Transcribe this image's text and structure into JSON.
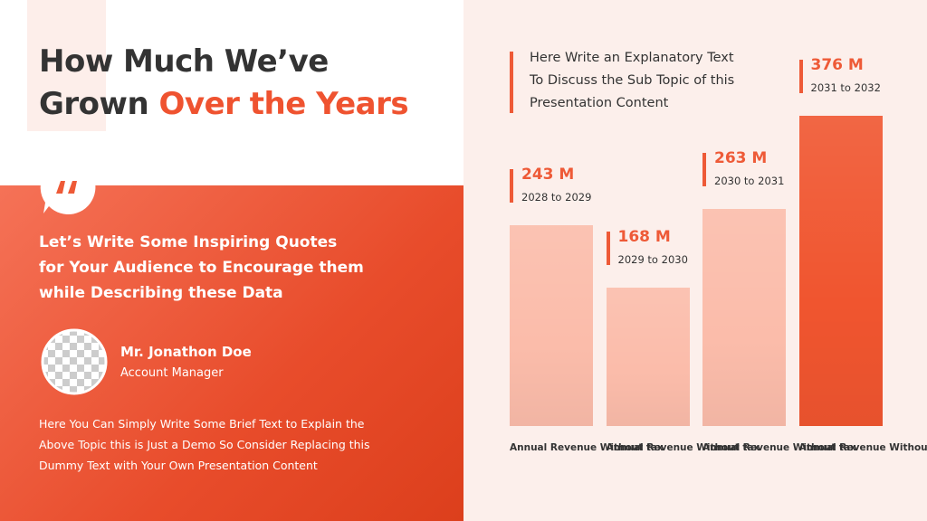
{
  "title": {
    "line1": "How Much We’ve",
    "line2": "Grown",
    "highlight": "Over the Years"
  },
  "quote": [
    "Let’s Write Some Inspiring Quotes",
    "for Your Audience to Encourage them",
    "while Describing these Data"
  ],
  "author": {
    "name": "Mr. Jonathon Doe",
    "role": "Account Manager"
  },
  "description": [
    "Here You Can Simply Write Some Brief Text to Explain the",
    "Above Topic this is Just a Demo So Consider Replacing this",
    "Dummy Text with Your Own Presentation Content"
  ],
  "chart_data": {
    "type": "bar",
    "annotation": [
      "Here Write an Explanatory Text",
      "To Discuss the Sub Topic of this",
      "Presentation Content"
    ],
    "categories": [
      "Annual Revenue Without tax",
      "Annual Revenue Without tax",
      "Annual Revenue Without tax",
      "Annual Revenue Without tax"
    ],
    "periods": [
      "2028 to 2029",
      "2029 to 2030",
      "2030 to 2031",
      "2031 to 2032"
    ],
    "values": [
      243,
      168,
      263,
      376
    ],
    "value_labels": [
      "243 M",
      "168 M",
      "263 M",
      "376 M"
    ],
    "colors": [
      "#fbbcaa",
      "#fbbcaa",
      "#fbbcaa",
      "#f0552f"
    ]
  }
}
